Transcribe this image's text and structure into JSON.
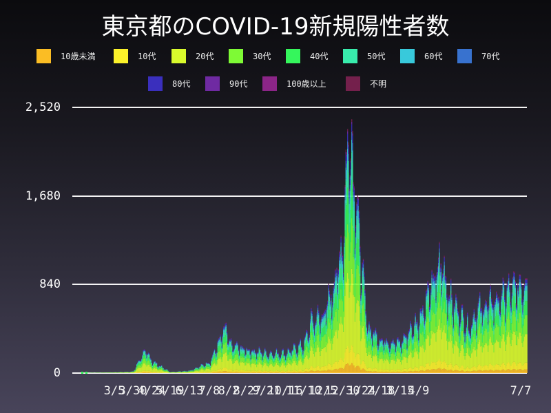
{
  "title": "東京都のCOVID-19新規陽性者数",
  "legend": [
    {
      "label": "10歳未満",
      "color": "#fbbd24"
    },
    {
      "label": "10代",
      "color": "#fcf22a"
    },
    {
      "label": "20代",
      "color": "#d9fa2c"
    },
    {
      "label": "30代",
      "color": "#7efa35"
    },
    {
      "label": "40代",
      "color": "#35f65c"
    },
    {
      "label": "50代",
      "color": "#38ecac"
    },
    {
      "label": "60代",
      "color": "#38c9db"
    },
    {
      "label": "70代",
      "color": "#3872cf"
    },
    {
      "label": "80代",
      "color": "#3a2fbd"
    },
    {
      "label": "90代",
      "color": "#6f2aa2"
    },
    {
      "label": "100歳以上",
      "color": "#8b2587"
    },
    {
      "label": "不明",
      "color": "#74204c"
    }
  ],
  "y_axis": {
    "ticks": [
      {
        "value": 0,
        "label": "0"
      },
      {
        "value": 840,
        "label": "840"
      },
      {
        "value": 1680,
        "label": "1,680"
      },
      {
        "value": 2520,
        "label": "2,520"
      }
    ]
  },
  "x_axis": {
    "ticks": [
      "3/5",
      "3/30",
      "4/24",
      "5/19",
      "6/13",
      "7/8",
      "8/2",
      "8/27",
      "9/21",
      "10/16",
      "11/10",
      "12/5",
      "12/30",
      "1/24",
      "2/18",
      "3/15",
      "4/9",
      "7/7"
    ]
  },
  "chart_data": {
    "type": "bar",
    "stacked": true,
    "title": "東京都のCOVID-19新規陽性者数",
    "xlabel": "",
    "ylabel": "",
    "ylim": [
      0,
      2520
    ],
    "grid": true,
    "legend_position": "top",
    "series_names": [
      "10歳未満",
      "10代",
      "20代",
      "30代",
      "40代",
      "50代",
      "60代",
      "70代",
      "80代",
      "90代",
      "100歳以上",
      "不明"
    ],
    "x_range": [
      "2020-01-24",
      "2021-07-07"
    ],
    "x_tick_labels": [
      "3/5",
      "3/30",
      "4/24",
      "5/19",
      "6/13",
      "7/8",
      "8/2",
      "8/27",
      "9/21",
      "10/16",
      "11/10",
      "12/5",
      "12/30",
      "1/24",
      "2/18",
      "3/15",
      "4/9",
      "7/7"
    ],
    "daily_total_keypoints": [
      {
        "date": "1/24",
        "total": 1
      },
      {
        "date": "3/5",
        "total": 8
      },
      {
        "date": "3/30",
        "total": 15
      },
      {
        "date": "4/10",
        "total": 190
      },
      {
        "date": "4/17",
        "total": 200
      },
      {
        "date": "4/24",
        "total": 120
      },
      {
        "date": "5/5",
        "total": 70
      },
      {
        "date": "5/19",
        "total": 10
      },
      {
        "date": "6/13",
        "total": 25
      },
      {
        "date": "7/8",
        "total": 110
      },
      {
        "date": "7/31",
        "total": 460
      },
      {
        "date": "8/2",
        "total": 290
      },
      {
        "date": "8/27",
        "total": 230
      },
      {
        "date": "9/21",
        "total": 200
      },
      {
        "date": "10/16",
        "total": 200
      },
      {
        "date": "11/10",
        "total": 290
      },
      {
        "date": "11/20",
        "total": 530
      },
      {
        "date": "12/5",
        "total": 580
      },
      {
        "date": "12/17",
        "total": 820
      },
      {
        "date": "12/30",
        "total": 1300
      },
      {
        "date": "1/7",
        "total": 2520
      },
      {
        "date": "1/16",
        "total": 1800
      },
      {
        "date": "1/24",
        "total": 1000
      },
      {
        "date": "2/1",
        "total": 450
      },
      {
        "date": "2/18",
        "total": 330
      },
      {
        "date": "3/15",
        "total": 300
      },
      {
        "date": "4/9",
        "total": 550
      },
      {
        "date": "5/8",
        "total": 1120
      },
      {
        "date": "5/20",
        "total": 750
      },
      {
        "date": "6/13",
        "total": 450
      },
      {
        "date": "6/23",
        "total": 620
      },
      {
        "date": "7/7",
        "total": 920
      }
    ],
    "approx_age_share": [
      0.04,
      0.07,
      0.3,
      0.2,
      0.15,
      0.11,
      0.05,
      0.03,
      0.03,
      0.01,
      0.0,
      0.01
    ]
  }
}
